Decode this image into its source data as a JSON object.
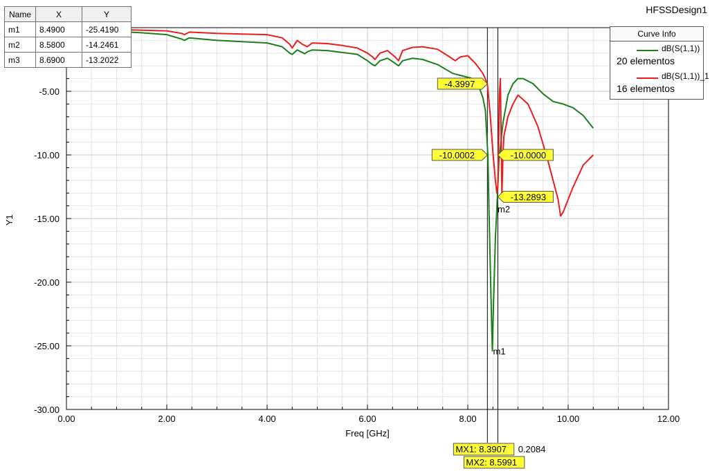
{
  "design_name": "HFSSDesign1",
  "marker_table": {
    "headers": [
      "Name",
      "X",
      "Y"
    ],
    "rows": [
      {
        "name": "m1",
        "x": "8.4900",
        "y": "-25.4190"
      },
      {
        "name": "m2",
        "x": "8.5800",
        "y": "-14.2461"
      },
      {
        "name": "m3",
        "x": "8.6900",
        "y": "-13.2022"
      }
    ]
  },
  "curve_info": {
    "title": "Curve Info",
    "entries": [
      {
        "name": "dB(S(1,1))",
        "count": "20 elementos",
        "color": "#1a7f1a"
      },
      {
        "name": "dB(S(1,1))_1",
        "count": "16 elementos",
        "color": "#ee1c1c"
      }
    ]
  },
  "chart_data": {
    "type": "line",
    "title": "",
    "xlabel": "Freq [GHz]",
    "ylabel": "Y1",
    "xlim": [
      0,
      12
    ],
    "ylim": [
      -30,
      0
    ],
    "x_ticks": [
      "0.00",
      "2.00",
      "4.00",
      "6.00",
      "8.00",
      "10.00",
      "12.00"
    ],
    "y_ticks": [
      "-5.00",
      "-10.00",
      "-15.00",
      "-20.00",
      "-25.00",
      "-30.00"
    ],
    "grid": true,
    "legend": "top-right",
    "series": [
      {
        "name": "dB(S(1,1))",
        "color": "#1a7f1a",
        "x": [
          0.0,
          1.0,
          1.5,
          2.0,
          2.3,
          2.35,
          2.45,
          3.0,
          3.5,
          4.0,
          4.3,
          4.45,
          4.5,
          4.6,
          4.75,
          4.8,
          4.9,
          5.2,
          5.5,
          5.8,
          6.0,
          6.1,
          6.15,
          6.25,
          6.4,
          6.55,
          6.62,
          6.7,
          6.9,
          7.1,
          7.4,
          7.7,
          7.9,
          8.1,
          8.2,
          8.3,
          8.35,
          8.4,
          8.42,
          8.45,
          8.48,
          8.49,
          8.51,
          8.55,
          8.58,
          8.62,
          8.7,
          8.8,
          8.9,
          9.0,
          9.1,
          9.3,
          9.5,
          9.7,
          9.9,
          10.1,
          10.3,
          10.5
        ],
        "y": [
          -0.25,
          -0.3,
          -0.4,
          -0.55,
          -0.9,
          -1.0,
          -0.8,
          -1.0,
          -1.1,
          -1.2,
          -1.5,
          -2.0,
          -2.1,
          -1.75,
          -2.05,
          -1.9,
          -1.75,
          -1.8,
          -1.95,
          -2.1,
          -2.6,
          -2.9,
          -3.0,
          -2.6,
          -2.4,
          -2.8,
          -3.0,
          -2.6,
          -2.4,
          -2.5,
          -2.9,
          -3.6,
          -3.8,
          -4.0,
          -4.4,
          -5.5,
          -6.5,
          -10.0,
          -14.0,
          -19.0,
          -24.0,
          -25.4,
          -22.0,
          -16.5,
          -14.25,
          -10.5,
          -7.5,
          -5.3,
          -4.4,
          -4.0,
          -4.0,
          -4.4,
          -5.2,
          -5.8,
          -6.0,
          -6.3,
          -6.9,
          -7.9
        ]
      },
      {
        "name": "dB(S(1,1))_1",
        "color": "#ee1c1c",
        "x": [
          0.0,
          1.0,
          2.0,
          2.3,
          2.35,
          2.45,
          3.0,
          3.5,
          4.0,
          4.3,
          4.45,
          4.5,
          4.6,
          4.7,
          4.8,
          4.9,
          5.2,
          5.5,
          5.8,
          6.0,
          6.1,
          6.15,
          6.25,
          6.4,
          6.55,
          6.62,
          6.7,
          6.9,
          7.1,
          7.4,
          7.6,
          7.75,
          7.85,
          8.0,
          8.15,
          8.3,
          8.39,
          8.45,
          8.5,
          8.55,
          8.58,
          8.6,
          8.63,
          8.65,
          8.68,
          8.7,
          8.72,
          8.8,
          8.9,
          9.0,
          9.2,
          9.4,
          9.6,
          9.8,
          9.85,
          9.9,
          10.1,
          10.3,
          10.5
        ],
        "y": [
          -0.1,
          -0.15,
          -0.25,
          -0.45,
          -0.55,
          -0.35,
          -0.45,
          -0.5,
          -0.55,
          -0.8,
          -1.3,
          -1.6,
          -1.0,
          -1.3,
          -1.5,
          -1.2,
          -1.25,
          -1.4,
          -1.6,
          -2.0,
          -2.3,
          -2.5,
          -2.0,
          -1.8,
          -2.3,
          -2.6,
          -1.8,
          -1.55,
          -1.5,
          -1.7,
          -2.2,
          -2.6,
          -2.3,
          -2.2,
          -2.8,
          -3.6,
          -4.4,
          -7.0,
          -9.8,
          -12.0,
          -13.0,
          -12.4,
          -5.2,
          -4.0,
          -13.2,
          -10.0,
          -8.5,
          -7.0,
          -6.0,
          -5.3,
          -6.0,
          -7.8,
          -10.5,
          -13.5,
          -14.8,
          -14.5,
          -12.5,
          -10.8,
          -10.0
        ]
      }
    ],
    "markers": [
      {
        "name": "m1",
        "x": 8.49,
        "y": -25.419
      },
      {
        "name": "m2",
        "x": 8.58,
        "y": -14.2461
      },
      {
        "name": "m3",
        "x": 8.69,
        "y": -13.2022
      }
    ],
    "vertical_markers": [
      {
        "label": "MX1: 8.3907",
        "x": 8.3907,
        "delta": "0.2084"
      },
      {
        "label": "MX2: 8.5991",
        "x": 8.5991
      }
    ],
    "crossing_labels": [
      {
        "text": "-4.3997",
        "x": 8.3907,
        "y": -4.3997,
        "side": "left"
      },
      {
        "text": "-10.0002",
        "x": 8.3907,
        "y": -10.0002,
        "side": "left"
      },
      {
        "text": "-10.0000",
        "x": 8.5991,
        "y": -10.0,
        "side": "right"
      },
      {
        "text": "-13.2893",
        "x": 8.5991,
        "y": -13.2893,
        "side": "right"
      }
    ]
  }
}
